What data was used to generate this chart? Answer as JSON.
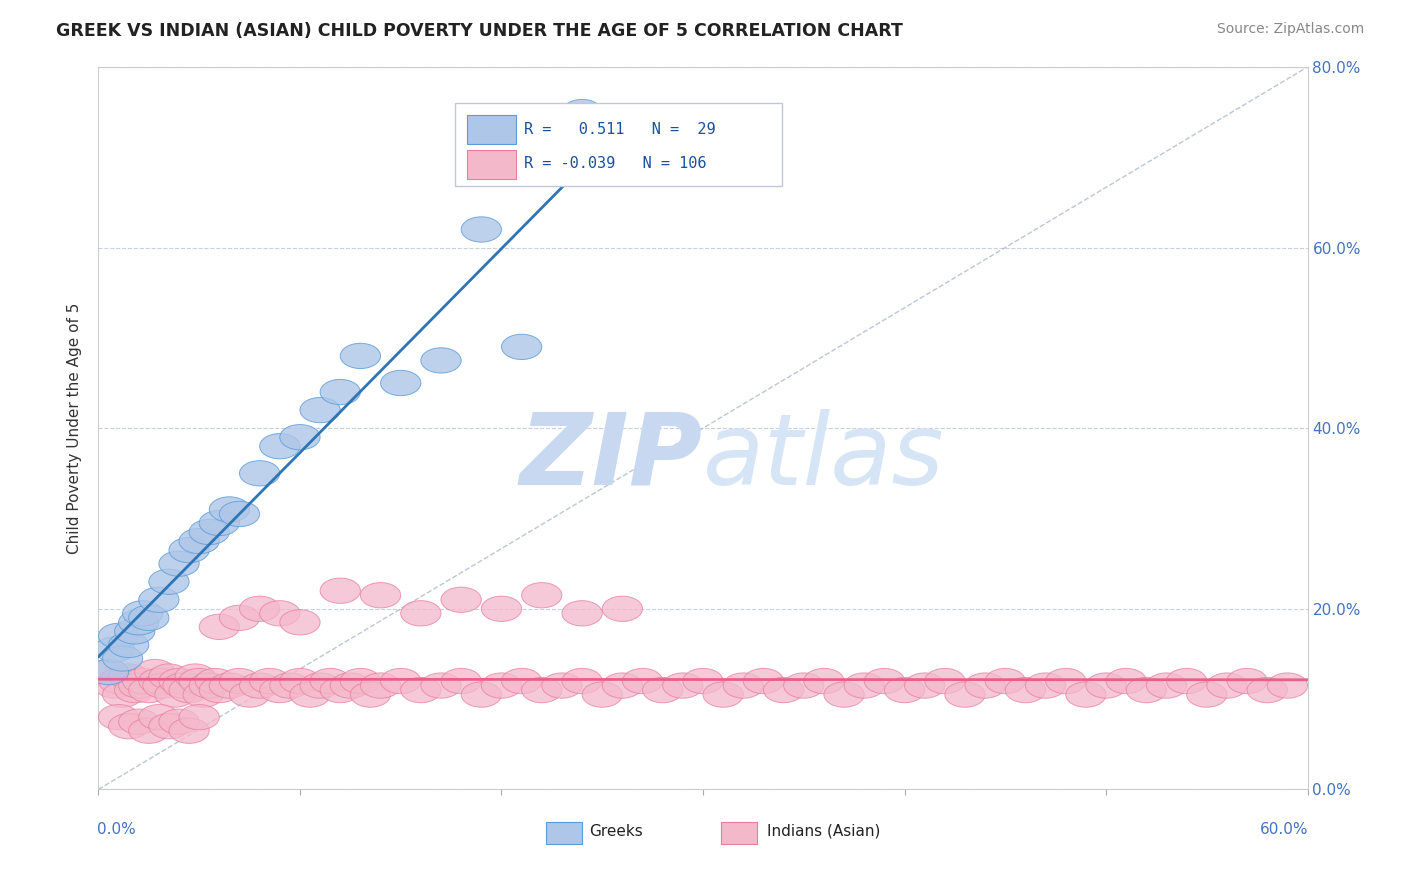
{
  "title": "GREEK VS INDIAN (ASIAN) CHILD POVERTY UNDER THE AGE OF 5 CORRELATION CHART",
  "source": "Source: ZipAtlas.com",
  "xmin": 0.0,
  "xmax": 0.6,
  "ymin": 0.0,
  "ymax": 0.8,
  "greek_R": 0.511,
  "greek_N": 29,
  "indian_R": -0.039,
  "indian_N": 106,
  "greek_color": "#aec6e8",
  "greek_edge": "#5b9bd5",
  "indian_color": "#f4b8cb",
  "indian_edge": "#e87da0",
  "greek_line_color": "#2e75b6",
  "indian_line_color": "#e8608a",
  "diag_line_color": "#aab8cc",
  "watermark_zi_color": "#c8d8ee",
  "watermark_patlas_color": "#d8e4f0",
  "greek_points_x": [
    0.005,
    0.008,
    0.01,
    0.012,
    0.015,
    0.018,
    0.02,
    0.022,
    0.025,
    0.03,
    0.035,
    0.04,
    0.045,
    0.05,
    0.055,
    0.06,
    0.065,
    0.07,
    0.08,
    0.09,
    0.1,
    0.11,
    0.12,
    0.13,
    0.15,
    0.17,
    0.19,
    0.21,
    0.24
  ],
  "greek_points_y": [
    0.13,
    0.155,
    0.17,
    0.145,
    0.16,
    0.175,
    0.185,
    0.195,
    0.19,
    0.21,
    0.23,
    0.25,
    0.265,
    0.275,
    0.285,
    0.295,
    0.31,
    0.305,
    0.35,
    0.38,
    0.39,
    0.42,
    0.44,
    0.48,
    0.45,
    0.475,
    0.62,
    0.49,
    0.75
  ],
  "indian_points_x": [
    0.005,
    0.008,
    0.01,
    0.012,
    0.015,
    0.018,
    0.02,
    0.022,
    0.025,
    0.028,
    0.03,
    0.032,
    0.035,
    0.038,
    0.04,
    0.042,
    0.045,
    0.048,
    0.05,
    0.052,
    0.055,
    0.058,
    0.06,
    0.065,
    0.07,
    0.075,
    0.08,
    0.085,
    0.09,
    0.095,
    0.1,
    0.105,
    0.11,
    0.115,
    0.12,
    0.125,
    0.13,
    0.135,
    0.14,
    0.15,
    0.16,
    0.17,
    0.18,
    0.19,
    0.2,
    0.21,
    0.22,
    0.23,
    0.24,
    0.25,
    0.26,
    0.27,
    0.28,
    0.29,
    0.3,
    0.31,
    0.32,
    0.33,
    0.34,
    0.35,
    0.36,
    0.37,
    0.38,
    0.39,
    0.4,
    0.41,
    0.42,
    0.43,
    0.44,
    0.45,
    0.46,
    0.47,
    0.48,
    0.49,
    0.5,
    0.51,
    0.52,
    0.53,
    0.54,
    0.55,
    0.56,
    0.57,
    0.58,
    0.59,
    0.01,
    0.015,
    0.02,
    0.025,
    0.03,
    0.035,
    0.04,
    0.045,
    0.05,
    0.06,
    0.07,
    0.08,
    0.09,
    0.1,
    0.12,
    0.14,
    0.16,
    0.18,
    0.2,
    0.22,
    0.24,
    0.26
  ],
  "indian_points_y": [
    0.13,
    0.115,
    0.12,
    0.105,
    0.125,
    0.11,
    0.115,
    0.12,
    0.11,
    0.13,
    0.12,
    0.115,
    0.125,
    0.105,
    0.12,
    0.115,
    0.11,
    0.125,
    0.12,
    0.105,
    0.115,
    0.12,
    0.11,
    0.115,
    0.12,
    0.105,
    0.115,
    0.12,
    0.11,
    0.115,
    0.12,
    0.105,
    0.115,
    0.12,
    0.11,
    0.115,
    0.12,
    0.105,
    0.115,
    0.12,
    0.11,
    0.115,
    0.12,
    0.105,
    0.115,
    0.12,
    0.11,
    0.115,
    0.12,
    0.105,
    0.115,
    0.12,
    0.11,
    0.115,
    0.12,
    0.105,
    0.115,
    0.12,
    0.11,
    0.115,
    0.12,
    0.105,
    0.115,
    0.12,
    0.11,
    0.115,
    0.12,
    0.105,
    0.115,
    0.12,
    0.11,
    0.115,
    0.12,
    0.105,
    0.115,
    0.12,
    0.11,
    0.115,
    0.12,
    0.105,
    0.115,
    0.12,
    0.11,
    0.115,
    0.08,
    0.07,
    0.075,
    0.065,
    0.08,
    0.07,
    0.075,
    0.065,
    0.08,
    0.18,
    0.19,
    0.2,
    0.195,
    0.185,
    0.22,
    0.215,
    0.195,
    0.21,
    0.2,
    0.215,
    0.195,
    0.2
  ]
}
